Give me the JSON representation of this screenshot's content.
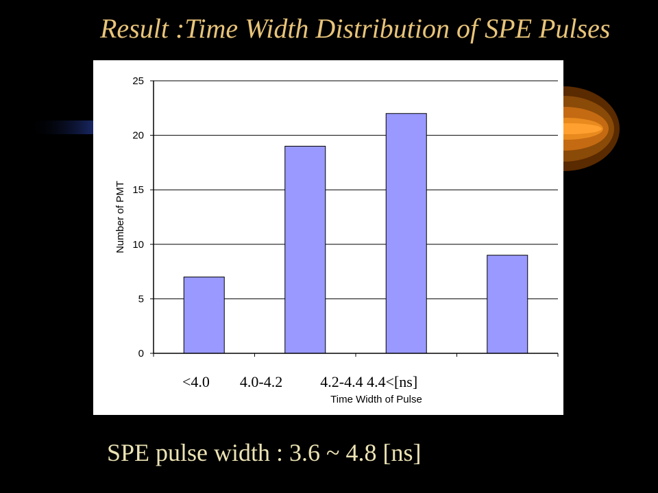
{
  "slide": {
    "title": "Result :Time Width Distribution of SPE Pulses",
    "footer": "SPE pulse width : 3.6 ~ 4.8 [ns]"
  },
  "colors": {
    "background": "#000000",
    "title": "#e8c47a",
    "footer": "#ece3b4",
    "bar_fill": "#9999ff",
    "bar_stroke": "#000000"
  },
  "chart_data": {
    "type": "bar",
    "categories": [
      "<4.0",
      "4.0-4.2",
      "4.2-4.4",
      "4.4<[ns]"
    ],
    "values": [
      7,
      19,
      22,
      9
    ],
    "xlabel": "Time Width of Pulse",
    "ylabel": "Number of PMT",
    "ylim": [
      0,
      25
    ],
    "yticks": [
      0,
      5,
      10,
      15,
      20,
      25
    ],
    "grid": true,
    "legend": "none"
  }
}
